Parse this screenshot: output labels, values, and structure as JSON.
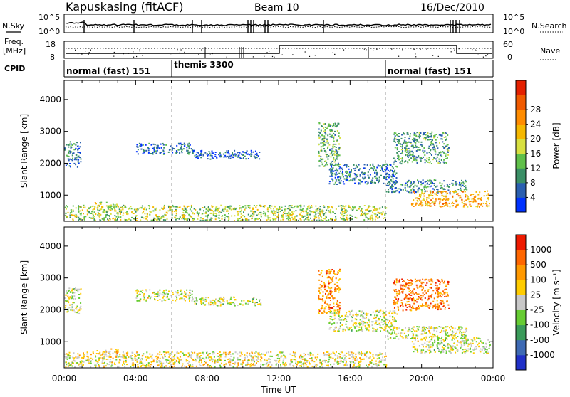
{
  "header": {
    "station": "Kapuskasing (fitACF)",
    "beam": "Beam 10",
    "date": "16/Dec/2010"
  },
  "top_panels": {
    "nsky_label": "N.Sky",
    "nsearch_label": "N.Search",
    "noise_ticks_left": [
      "10^5",
      "10^0"
    ],
    "noise_ticks_right": [
      "10^5",
      "10^0"
    ],
    "freq_label_1": "Freq.",
    "freq_label_2": "[MHz]",
    "freq_ticks": [
      "18",
      "8"
    ],
    "nave_label": "Nave",
    "nave_ticks": [
      "60",
      "0"
    ],
    "cpid_label": "CPID",
    "cpid_segments": [
      {
        "label": "normal (fast) 151",
        "start_h": 0
      },
      {
        "label": "themis 3300",
        "start_h": 6
      },
      {
        "label": "normal (fast) 151",
        "start_h": 18
      }
    ]
  },
  "chart_data": [
    {
      "type": "heatmap",
      "title": "",
      "ylabel": "Slant Range [km]",
      "xlabel": "Time UT",
      "x_range_h": [
        0,
        24
      ],
      "ylim": [
        180,
        4600
      ],
      "y_ticks": [
        1000,
        2000,
        3000,
        4000
      ],
      "x_ticks": [
        "00:00",
        "04:00",
        "08:00",
        "12:00",
        "16:00",
        "20:00",
        "00:00"
      ],
      "colorbar": {
        "label": "Power [dB]",
        "ticks": [
          "4",
          "8",
          "12",
          "16",
          "20",
          "24",
          "28"
        ],
        "colors": [
          "#0032ff",
          "#2a5fb0",
          "#3a8f66",
          "#60c04a",
          "#d8e040",
          "#f5b800",
          "#ff8c00",
          "#f05a00",
          "#e42000"
        ]
      },
      "echo_regions": [
        {
          "t0": 0.0,
          "t1": 0.9,
          "r0": 1900,
          "r1": 2700,
          "level": 0.2
        },
        {
          "t0": 1.7,
          "t1": 3.0,
          "r0": 620,
          "r1": 800,
          "level": 0.5
        },
        {
          "t0": 4.0,
          "t1": 7.2,
          "r0": 2300,
          "r1": 2650,
          "level": 0.18
        },
        {
          "t0": 7.2,
          "t1": 11.0,
          "r0": 2150,
          "r1": 2420,
          "level": 0.15
        },
        {
          "t0": 0.0,
          "t1": 18.0,
          "r0": 220,
          "r1": 700,
          "level": 0.45
        },
        {
          "t0": 14.2,
          "t1": 15.4,
          "r0": 1900,
          "r1": 3300,
          "level": 0.35
        },
        {
          "t0": 14.8,
          "t1": 18.6,
          "r0": 1350,
          "r1": 2000,
          "level": 0.2
        },
        {
          "t0": 18.0,
          "t1": 22.5,
          "r0": 1100,
          "r1": 1500,
          "level": 0.25
        },
        {
          "t0": 18.4,
          "t1": 21.5,
          "r0": 2000,
          "r1": 3000,
          "level": 0.3
        },
        {
          "t0": 19.4,
          "t1": 23.8,
          "r0": 650,
          "r1": 1150,
          "level": 0.65
        }
      ]
    },
    {
      "type": "heatmap",
      "title": "",
      "ylabel": "Slant Range [km]",
      "xlabel": "Time UT",
      "x_range_h": [
        0,
        24
      ],
      "ylim": [
        180,
        4600
      ],
      "y_ticks": [
        1000,
        2000,
        3000,
        4000
      ],
      "x_ticks": [
        "00:00",
        "04:00",
        "08:00",
        "12:00",
        "16:00",
        "20:00",
        "00:00"
      ],
      "colorbar": {
        "label": "Velocity [m s⁻¹]",
        "ticks": [
          "1000",
          "500",
          "100",
          "25",
          "-25",
          "-100",
          "-500",
          "-1000"
        ],
        "colors": [
          "#2030c8",
          "#3e6ab4",
          "#3a9b5a",
          "#66cc33",
          "#c8c8c8",
          "#ffcc00",
          "#ff9900",
          "#ff6600",
          "#ee1a00"
        ]
      },
      "echo_regions": [
        {
          "t0": 0.0,
          "t1": 0.9,
          "r0": 1900,
          "r1": 2700,
          "level": 0.5
        },
        {
          "t0": 1.7,
          "t1": 3.0,
          "r0": 620,
          "r1": 800,
          "level": 0.62
        },
        {
          "t0": 4.0,
          "t1": 7.2,
          "r0": 2300,
          "r1": 2650,
          "level": 0.5
        },
        {
          "t0": 7.2,
          "t1": 11.0,
          "r0": 2150,
          "r1": 2420,
          "level": 0.5
        },
        {
          "t0": 0.0,
          "t1": 18.0,
          "r0": 220,
          "r1": 700,
          "level": 0.55
        },
        {
          "t0": 14.2,
          "t1": 15.4,
          "r0": 1900,
          "r1": 3300,
          "level": 0.75
        },
        {
          "t0": 14.8,
          "t1": 18.6,
          "r0": 1350,
          "r1": 2000,
          "level": 0.5
        },
        {
          "t0": 18.0,
          "t1": 22.5,
          "r0": 1100,
          "r1": 1500,
          "level": 0.5
        },
        {
          "t0": 18.4,
          "t1": 21.5,
          "r0": 2000,
          "r1": 3000,
          "level": 0.8
        },
        {
          "t0": 19.4,
          "t1": 23.8,
          "r0": 650,
          "r1": 1150,
          "level": 0.5
        }
      ]
    }
  ]
}
